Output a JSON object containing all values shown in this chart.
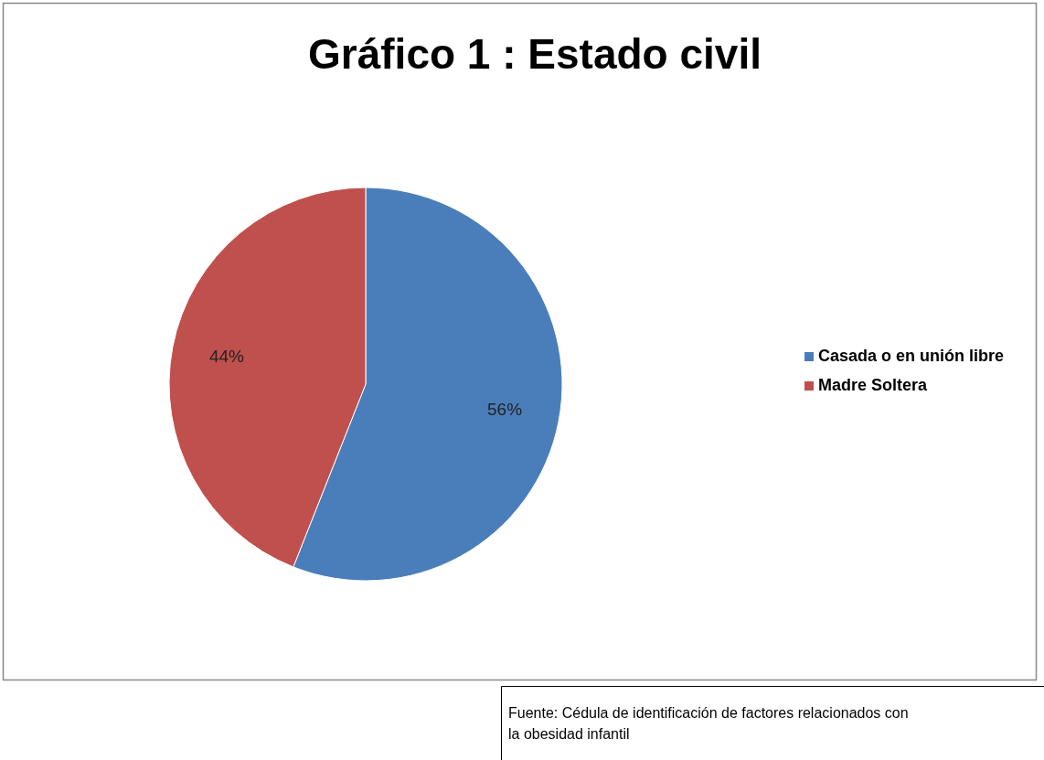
{
  "chart_data": {
    "type": "pie",
    "title": "Gráfico 1 : Estado civil",
    "categories": [
      "Casada o en unión libre",
      "Madre Soltera"
    ],
    "values": [
      56,
      44
    ],
    "colors": [
      "#4a7ebb",
      "#c0504d"
    ],
    "value_labels": [
      "56%",
      "44%"
    ],
    "legend": "right",
    "annotations": [
      "Fuente: Cédula de identificación de factores relacionados con la obesidad infantil"
    ]
  }
}
